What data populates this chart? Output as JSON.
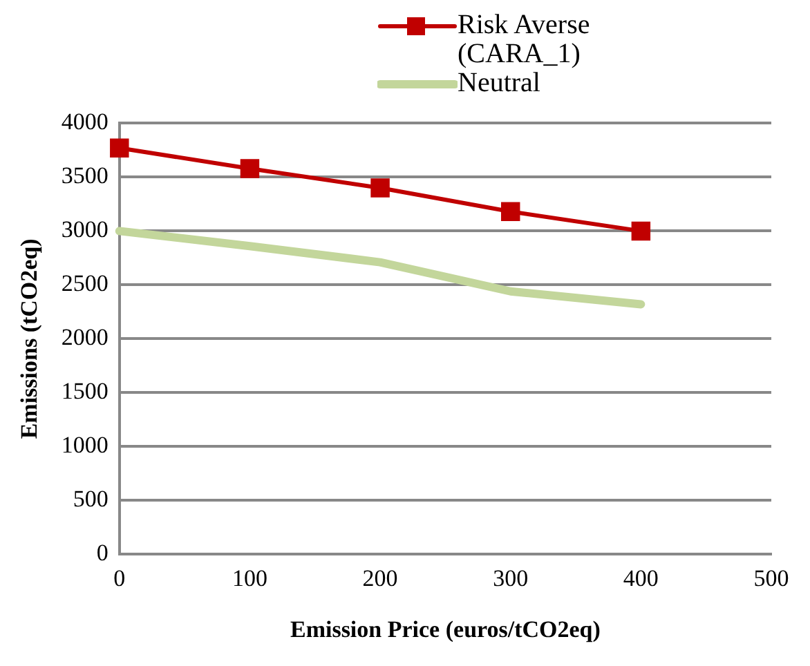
{
  "chart_data": {
    "type": "line",
    "xlabel": "Emission Price (euros/tCO2eq)",
    "ylabel": "Emissions (tCO2eq)",
    "x": [
      0,
      100,
      200,
      300,
      400
    ],
    "xlim": [
      0,
      500
    ],
    "xticks": [
      0,
      100,
      200,
      300,
      400,
      500
    ],
    "ylim": [
      0,
      4000
    ],
    "yticks": [
      0,
      500,
      1000,
      1500,
      2000,
      2500,
      3000,
      3500,
      4000
    ],
    "grid": "y",
    "legend": "top",
    "series": [
      {
        "name": "Risk Averse (CARA_1)",
        "color": "#c00000",
        "values": [
          3770,
          3580,
          3400,
          3180,
          3000
        ],
        "marker": "square"
      },
      {
        "name": "Neutral",
        "color": "#c3d69b",
        "values": [
          3000,
          2860,
          2710,
          2440,
          2320
        ],
        "marker": "none"
      }
    ]
  }
}
